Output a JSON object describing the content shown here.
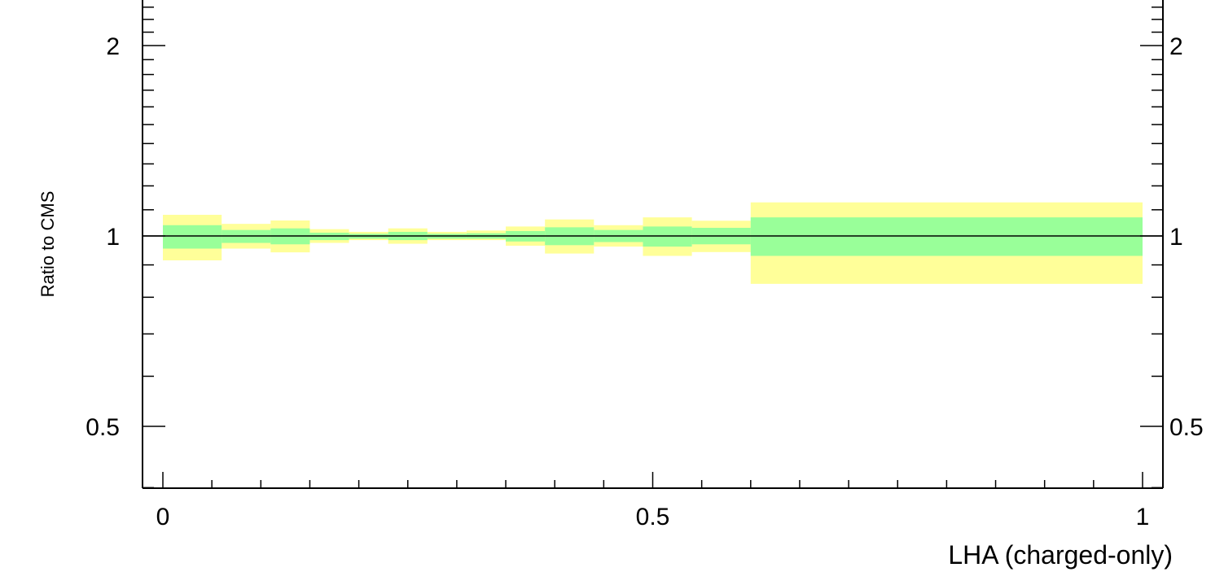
{
  "chart_data": {
    "type": "area",
    "title": "",
    "xlabel": "LHA (charged-only)",
    "ylabel": "Ratio to CMS",
    "xlim": [
      -0.02,
      1.02
    ],
    "ylim": [
      0.35,
      2.6
    ],
    "y_scale": "log",
    "grid": false,
    "x_ticks": [
      {
        "value": 0,
        "label": "0"
      },
      {
        "value": 0.5,
        "label": "0.5"
      },
      {
        "value": 1,
        "label": "1"
      }
    ],
    "y_ticks": [
      {
        "value": 0.5,
        "label": "0.5"
      },
      {
        "value": 1,
        "label": "1"
      },
      {
        "value": 2,
        "label": "2"
      }
    ],
    "reference_line": 1,
    "bin_edges": [
      0,
      0.06,
      0.11,
      0.15,
      0.19,
      0.23,
      0.27,
      0.31,
      0.35,
      0.39,
      0.44,
      0.49,
      0.54,
      0.6,
      1.0
    ],
    "series": [
      {
        "kind": "outer-band",
        "color": "#ffff99",
        "lower": [
          0.915,
          0.955,
          0.942,
          0.975,
          0.985,
          0.972,
          0.985,
          0.985,
          0.965,
          0.938,
          0.962,
          0.93,
          0.943,
          0.84
        ],
        "upper": [
          1.08,
          1.045,
          1.058,
          1.025,
          1.015,
          1.028,
          1.015,
          1.02,
          1.035,
          1.062,
          1.04,
          1.07,
          1.057,
          1.13
        ]
      },
      {
        "kind": "inner-band",
        "color": "#99ff99",
        "lower": [
          0.955,
          0.975,
          0.97,
          0.985,
          0.99,
          0.985,
          0.99,
          0.99,
          0.98,
          0.967,
          0.978,
          0.962,
          0.97,
          0.93
        ],
        "upper": [
          1.04,
          1.022,
          1.028,
          1.012,
          1.008,
          1.015,
          1.008,
          1.01,
          1.018,
          1.032,
          1.022,
          1.035,
          1.03,
          1.07
        ]
      }
    ]
  }
}
